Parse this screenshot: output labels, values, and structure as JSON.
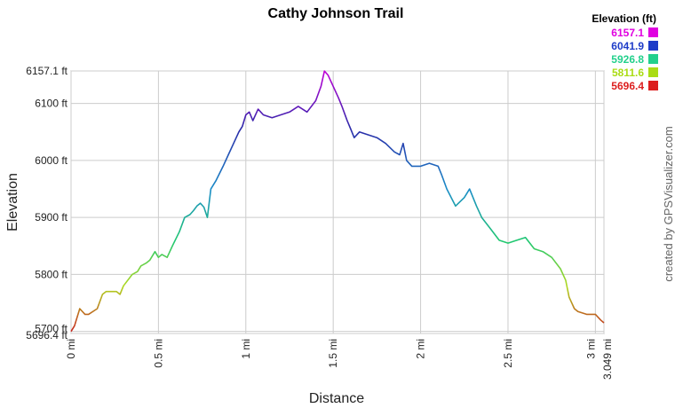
{
  "chart_data": {
    "type": "line",
    "title": "Cathy Johnson Trail",
    "xlabel": "Distance",
    "ylabel": "Elevation",
    "xlim": [
      0,
      3.049
    ],
    "ylim": [
      5696.4,
      6157.1
    ],
    "x_ticks": [
      {
        "value": 0,
        "label": "0 mi"
      },
      {
        "value": 0.5,
        "label": "0.5 mi"
      },
      {
        "value": 1,
        "label": "1 mi"
      },
      {
        "value": 1.5,
        "label": "1.5 mi"
      },
      {
        "value": 2,
        "label": "2 mi"
      },
      {
        "value": 2.5,
        "label": "2.5 mi"
      },
      {
        "value": 3,
        "label": "3 mi"
      },
      {
        "value": 3.049,
        "label": "3.049 mi"
      }
    ],
    "y_ticks": [
      {
        "value": 5696.4,
        "label": "5696.4 ft"
      },
      {
        "value": 5700,
        "label": "5700 ft"
      },
      {
        "value": 5800,
        "label": "5800 ft"
      },
      {
        "value": 5900,
        "label": "5900 ft"
      },
      {
        "value": 6000,
        "label": "6000 ft"
      },
      {
        "value": 6100,
        "label": "6100 ft"
      },
      {
        "value": 6157.1,
        "label": "6157.1 ft"
      }
    ],
    "grid": true,
    "credit": "created by GPSVisualizer.com",
    "legend": {
      "title": "Elevation (ft)",
      "placement": "top-right",
      "entries": [
        {
          "label": "6157.1",
          "value": 6157.1,
          "color": "#e000e0"
        },
        {
          "label": "6041.9",
          "value": 6041.9,
          "color": "#1e3cc8"
        },
        {
          "label": "5926.8",
          "value": 5926.8,
          "color": "#22d08c"
        },
        {
          "label": "5811.6",
          "value": 5811.6,
          "color": "#aadc14"
        },
        {
          "label": "5696.4",
          "value": 5696.4,
          "color": "#dc1e1e"
        }
      ]
    },
    "series": [
      {
        "x": [
          0,
          0.02,
          0.05,
          0.08,
          0.1,
          0.15,
          0.18,
          0.2,
          0.23,
          0.26,
          0.28,
          0.3,
          0.35,
          0.38,
          0.4,
          0.43,
          0.45,
          0.48,
          0.5,
          0.52,
          0.55,
          0.58,
          0.62,
          0.65,
          0.68,
          0.7,
          0.72,
          0.74,
          0.76,
          0.78,
          0.8,
          0.83,
          0.87,
          0.9,
          0.93,
          0.96,
          0.98,
          1.0,
          1.02,
          1.04,
          1.07,
          1.1,
          1.15,
          1.2,
          1.25,
          1.3,
          1.35,
          1.4,
          1.43,
          1.45,
          1.47,
          1.5,
          1.53,
          1.55,
          1.58,
          1.6,
          1.62,
          1.65,
          1.7,
          1.75,
          1.8,
          1.85,
          1.88,
          1.9,
          1.92,
          1.95,
          2.0,
          2.05,
          2.1,
          2.12,
          2.15,
          2.2,
          2.25,
          2.28,
          2.32,
          2.35,
          2.4,
          2.45,
          2.5,
          2.55,
          2.6,
          2.65,
          2.7,
          2.75,
          2.8,
          2.83,
          2.85,
          2.88,
          2.9,
          2.95,
          3.0,
          3.03,
          3.049
        ],
        "y": [
          5700,
          5710,
          5740,
          5730,
          5730,
          5740,
          5765,
          5770,
          5770,
          5770,
          5765,
          5780,
          5800,
          5805,
          5815,
          5820,
          5825,
          5840,
          5830,
          5835,
          5830,
          5850,
          5875,
          5900,
          5905,
          5912,
          5920,
          5925,
          5918,
          5900,
          5950,
          5965,
          5990,
          6010,
          6030,
          6050,
          6060,
          6080,
          6085,
          6070,
          6090,
          6080,
          6075,
          6080,
          6085,
          6095,
          6085,
          6105,
          6130,
          6157,
          6150,
          6130,
          6110,
          6095,
          6070,
          6055,
          6040,
          6050,
          6045,
          6040,
          6030,
          6015,
          6010,
          6030,
          6000,
          5990,
          5990,
          5995,
          5990,
          5975,
          5950,
          5920,
          5935,
          5950,
          5920,
          5900,
          5880,
          5860,
          5855,
          5860,
          5865,
          5845,
          5840,
          5830,
          5810,
          5790,
          5760,
          5740,
          5735,
          5730,
          5730,
          5720,
          5715
        ]
      }
    ]
  }
}
